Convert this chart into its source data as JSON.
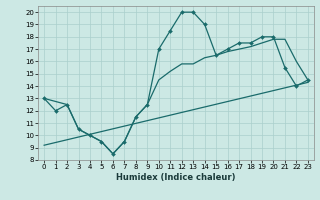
{
  "xlabel": "Humidex (Indice chaleur)",
  "bg_color": "#cce8e4",
  "grid_color": "#aacfcc",
  "line_color": "#1a6b6b",
  "xlim": [
    -0.5,
    23.5
  ],
  "ylim": [
    8,
    20.5
  ],
  "xticks": [
    0,
    1,
    2,
    3,
    4,
    5,
    6,
    7,
    8,
    9,
    10,
    11,
    12,
    13,
    14,
    15,
    16,
    17,
    18,
    19,
    20,
    21,
    22,
    23
  ],
  "yticks": [
    8,
    9,
    10,
    11,
    12,
    13,
    14,
    15,
    16,
    17,
    18,
    19,
    20
  ],
  "line1_x": [
    0,
    1,
    2,
    3,
    4,
    5,
    6,
    7,
    8,
    9,
    10,
    11,
    12,
    13,
    14,
    15,
    16,
    17,
    18,
    19,
    20,
    21,
    22,
    23
  ],
  "line1_y": [
    13,
    12,
    12.5,
    10.5,
    10,
    9.5,
    8.5,
    9.5,
    11.5,
    12.5,
    17,
    18.5,
    20,
    20,
    19,
    16.5,
    17,
    17.5,
    17.5,
    18,
    18,
    15.5,
    14,
    14.5
  ],
  "line2_x": [
    0,
    23
  ],
  "line2_y": [
    9.2,
    14.3
  ],
  "line3_x": [
    0,
    2,
    3,
    4,
    5,
    6,
    7,
    8,
    9,
    10,
    11,
    12,
    13,
    14,
    15,
    16,
    17,
    18,
    19,
    20,
    21,
    22,
    23
  ],
  "line3_y": [
    13,
    12.5,
    10.5,
    10,
    9.5,
    8.5,
    9.5,
    11.5,
    12.5,
    14.5,
    15.2,
    15.8,
    15.8,
    16.3,
    16.5,
    16.8,
    17.0,
    17.2,
    17.5,
    17.8,
    17.8,
    16.0,
    14.5
  ]
}
